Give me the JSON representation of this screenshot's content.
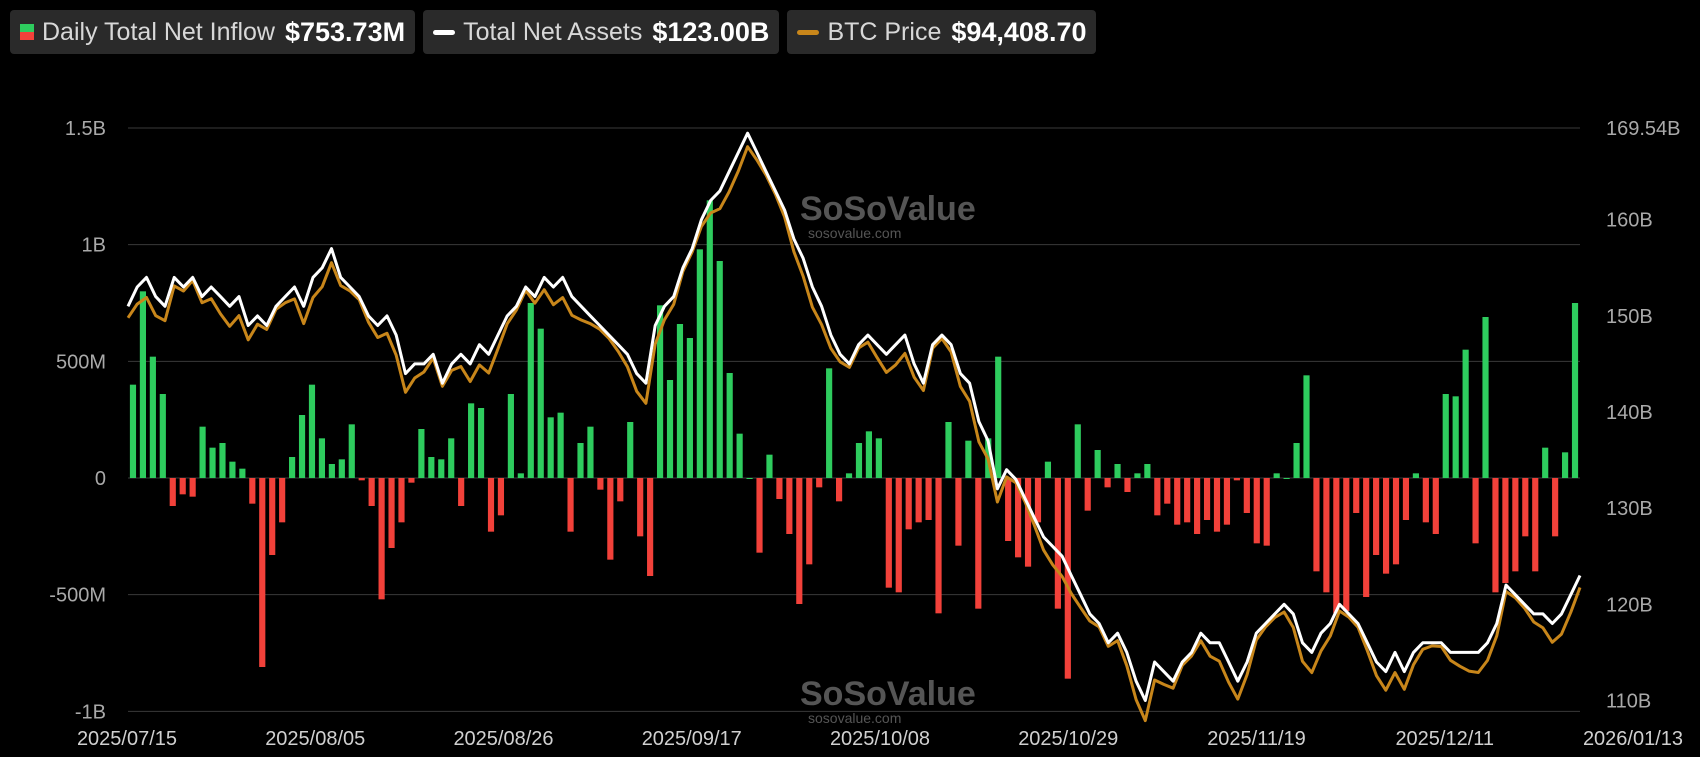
{
  "legend": {
    "inflow": {
      "label": "Daily Total Net Inflow",
      "value": "$753.73M"
    },
    "assets": {
      "label": "Total Net Assets",
      "value": "$123.00B"
    },
    "btc": {
      "label": "BTC Price",
      "value": "$94,408.70"
    }
  },
  "watermark": {
    "brand": "SoSoValue",
    "site": "sosovalue.com"
  },
  "colors": {
    "positive": "#2ecc5e",
    "negative": "#f2413a",
    "assets": "#ffffff",
    "btc": "#c8861a",
    "grid": "#3a3a3a",
    "background": "#000000"
  },
  "chart_data": {
    "type": "bar",
    "x_labels": [
      "2025/07/15",
      "2025/08/05",
      "2025/08/26",
      "2025/09/17",
      "2025/10/08",
      "2025/10/29",
      "2025/11/19",
      "2025/12/11",
      "2026/01/13"
    ],
    "left_axis": {
      "ticks": [
        "1.5B",
        "1B",
        "500M",
        "0",
        "-500M",
        "-1B"
      ],
      "range": [
        -1000,
        1500
      ],
      "unit": "M"
    },
    "right_axis": {
      "ticks": [
        "169.54B",
        "160B",
        "150B",
        "140B",
        "130B",
        "120B",
        "110B"
      ],
      "range": [
        108.8,
        169.54
      ],
      "unit": "B"
    },
    "series": [
      {
        "name": "Daily Total Net Inflow",
        "kind": "bar",
        "values": [
          400,
          800,
          520,
          360,
          -120,
          -70,
          -80,
          220,
          130,
          150,
          70,
          40,
          -110,
          -810,
          -330,
          -190,
          90,
          270,
          400,
          170,
          60,
          80,
          230,
          -10,
          -120,
          -520,
          -300,
          -190,
          -20,
          210,
          90,
          80,
          170,
          -120,
          320,
          300,
          -230,
          -160,
          360,
          20,
          750,
          640,
          260,
          280,
          -230,
          150,
          220,
          -50,
          -350,
          -100,
          240,
          -250,
          -420,
          740,
          420,
          660,
          600,
          980,
          1190,
          930,
          450,
          190,
          0,
          -320,
          100,
          -90,
          -240,
          -540,
          -370,
          -40,
          470,
          -100,
          20,
          150,
          200,
          170,
          -470,
          -490,
          -220,
          -190,
          -180,
          -580,
          240,
          -290,
          160,
          -560,
          170,
          520,
          -270,
          -340,
          -380,
          -190,
          70,
          -560,
          -860,
          230,
          -140,
          120,
          -40,
          60,
          -60,
          20,
          60,
          -160,
          -110,
          -200,
          -190,
          -240,
          -180,
          -230,
          -200,
          -10,
          -150,
          -280,
          -290,
          20,
          0,
          150,
          440,
          -400,
          -490,
          -580,
          -570,
          -150,
          -510,
          -330,
          -410,
          -370,
          -180,
          20,
          -190,
          -240,
          360,
          350,
          550,
          -280,
          690,
          -490,
          -450,
          -400,
          -250,
          -400,
          130,
          -250,
          110,
          750
        ],
        "note": "per-trading-day values in $M, approximated from bar heights"
      },
      {
        "name": "Total Net Assets",
        "kind": "line",
        "axis": "right",
        "values": [
          151,
          153,
          154,
          152,
          151,
          154,
          153,
          154,
          152,
          153,
          152,
          151,
          152,
          149,
          150,
          149,
          151,
          152,
          153,
          151,
          154,
          155,
          157,
          154,
          153,
          152,
          150,
          149,
          150,
          148,
          144,
          145,
          145,
          146,
          143,
          145,
          146,
          145,
          147,
          146,
          148,
          150,
          151,
          153,
          152,
          154,
          153,
          154,
          152,
          151,
          150,
          149,
          148,
          147,
          146,
          144,
          143,
          149,
          151,
          152,
          155,
          157,
          160,
          162,
          163,
          165,
          167,
          169,
          167,
          165,
          163,
          161,
          158,
          156,
          153,
          151,
          148,
          146,
          145,
          147,
          148,
          147,
          146,
          147,
          148,
          145,
          143,
          147,
          148,
          147,
          144,
          143,
          139,
          137,
          132,
          134,
          133,
          131,
          129,
          127,
          126,
          125,
          123,
          121,
          119,
          118,
          116,
          117,
          115,
          112,
          110,
          114,
          113,
          112,
          114,
          115,
          117,
          116,
          116,
          114,
          112,
          114,
          117,
          118,
          119,
          120,
          119,
          116,
          115,
          117,
          118,
          120,
          119,
          118,
          116,
          114,
          113,
          115,
          113,
          115,
          116,
          116,
          116,
          115,
          115,
          115,
          115,
          116,
          118,
          122,
          121,
          120,
          119,
          119,
          118,
          119,
          121,
          123
        ],
        "note": "approximate, $B"
      },
      {
        "name": "BTC Price",
        "kind": "line",
        "axis": "right",
        "note": "approximate, plotted on same scale as Total Net Assets"
      }
    ]
  }
}
